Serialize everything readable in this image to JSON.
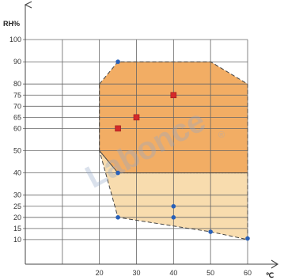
{
  "chart_data": {
    "type": "scatter",
    "title": "",
    "xlabel": "℃",
    "ylabel": "RH%",
    "xlim": [
      0,
      60
    ],
    "ylim": [
      0,
      100
    ],
    "grid": true,
    "x_ticks": [
      20,
      30,
      40,
      50,
      60
    ],
    "y_ticks": [
      10,
      15,
      20,
      25,
      30,
      40,
      50,
      60,
      65,
      70,
      75,
      80,
      90,
      100
    ],
    "regions": [
      {
        "role": "upper-zone",
        "color": "#f2ad64",
        "polygon": [
          [
            20,
            80
          ],
          [
            25,
            90
          ],
          [
            50,
            90
          ],
          [
            60,
            80
          ],
          [
            60,
            40
          ],
          [
            25,
            40
          ],
          [
            20,
            50
          ]
        ]
      },
      {
        "role": "lower-zone",
        "color": "#f8dcae",
        "polygon": [
          [
            20,
            50
          ],
          [
            25,
            40
          ],
          [
            60,
            40
          ],
          [
            60,
            10
          ],
          [
            50,
            13.5
          ],
          [
            25,
            20
          ]
        ]
      }
    ],
    "series": [
      {
        "marker": "circle",
        "color": "#2860b8",
        "points": [
          [
            25,
            90
          ],
          [
            25,
            40
          ],
          [
            25,
            20
          ],
          [
            40,
            25
          ],
          [
            40,
            20
          ],
          [
            50,
            13.5
          ],
          [
            60,
            10.5
          ]
        ]
      },
      {
        "marker": "square",
        "color": "#d42a2a",
        "points": [
          [
            25,
            60
          ],
          [
            30,
            65
          ],
          [
            40,
            75
          ]
        ]
      }
    ]
  },
  "watermark": {
    "text": "Labonce",
    "mark": "®"
  }
}
